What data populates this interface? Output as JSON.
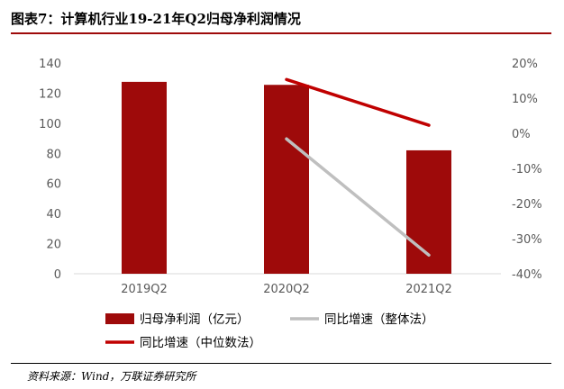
{
  "figure": {
    "title": "图表7：计算机行业19-21年Q2归母净利润情况",
    "source": "资料来源：Wind，万联证券研究所"
  },
  "chart_data": {
    "type": "bar",
    "categories": [
      "2019Q2",
      "2020Q2",
      "2021Q2"
    ],
    "series": [
      {
        "name": "归母净利润（亿元）",
        "type": "bar",
        "axis": "left",
        "values": [
          127.5,
          125.5,
          82
        ],
        "color": "#9e0a0a"
      },
      {
        "name": "同比增速（整体法）",
        "type": "line",
        "axis": "right",
        "values": [
          null,
          -1.6,
          -34.7
        ],
        "color": "#bfbfbf"
      },
      {
        "name": "同比增速（中位数法）",
        "type": "line",
        "axis": "right",
        "values": [
          null,
          15.3,
          2.3
        ],
        "color": "#c00000"
      }
    ],
    "yleft": {
      "min": 0,
      "max": 140,
      "ticks": [
        "0",
        "20",
        "40",
        "60",
        "80",
        "100",
        "120",
        "140"
      ]
    },
    "yright": {
      "min": -40,
      "max": 20,
      "ticks": [
        "-40%",
        "-30%",
        "-20%",
        "-10%",
        "0%",
        "10%",
        "20%"
      ]
    },
    "grid": false,
    "legend": "bottom"
  }
}
